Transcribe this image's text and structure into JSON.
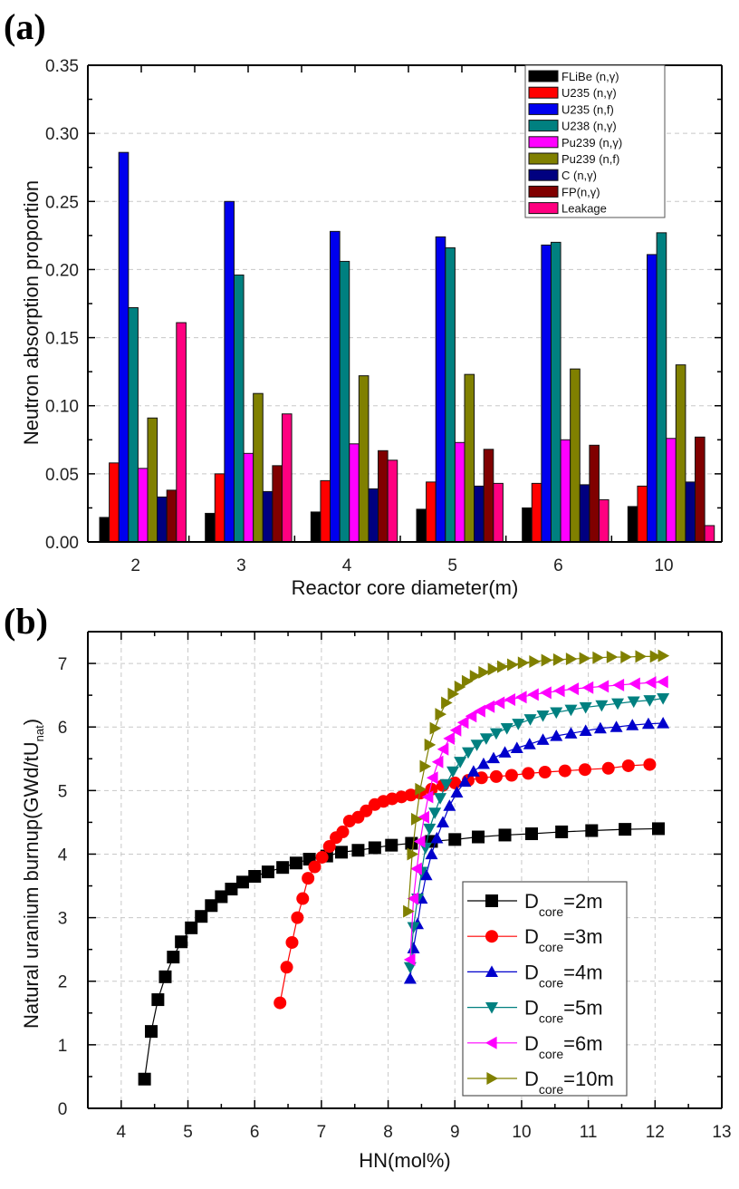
{
  "panels": {
    "a_label": "(a)",
    "b_label": "(b)"
  },
  "chart_data": [
    {
      "id": "a",
      "type": "bar",
      "title": "",
      "xlabel": "Reactor core diameter(m)",
      "ylabel": "Neutron absorption proportion",
      "ylim": [
        0,
        0.35
      ],
      "yticks": [
        "0.00",
        "0.05",
        "0.10",
        "0.15",
        "0.20",
        "0.25",
        "0.30",
        "0.35"
      ],
      "grid": "horizontal dashed",
      "legend_position": "top-right",
      "categories": [
        "2",
        "3",
        "4",
        "5",
        "6",
        "10"
      ],
      "series": [
        {
          "name": "FLiBe (n,γ)",
          "color": "#000000",
          "values": [
            0.018,
            0.021,
            0.022,
            0.024,
            0.025,
            0.026
          ]
        },
        {
          "name": "U235 (n,γ)",
          "color": "#ff0000",
          "values": [
            0.058,
            0.05,
            0.045,
            0.044,
            0.043,
            0.041
          ]
        },
        {
          "name": "U235 (n,f)",
          "color": "#0000ee",
          "values": [
            0.286,
            0.25,
            0.228,
            0.224,
            0.218,
            0.211
          ]
        },
        {
          "name": "U238 (n,γ)",
          "color": "#008080",
          "values": [
            0.172,
            0.196,
            0.206,
            0.216,
            0.22,
            0.227
          ]
        },
        {
          "name": "Pu239 (n,γ)",
          "color": "#ff00ff",
          "values": [
            0.054,
            0.065,
            0.072,
            0.073,
            0.075,
            0.076
          ]
        },
        {
          "name": "Pu239 (n,f)",
          "color": "#808000",
          "values": [
            0.091,
            0.109,
            0.122,
            0.123,
            0.127,
            0.13
          ]
        },
        {
          "name": "C (n,γ)",
          "color": "#000080",
          "values": [
            0.033,
            0.037,
            0.039,
            0.041,
            0.042,
            0.044
          ]
        },
        {
          "name": "FP(n,γ)",
          "color": "#800000",
          "values": [
            0.038,
            0.056,
            0.067,
            0.068,
            0.071,
            0.077
          ]
        },
        {
          "name": "Leakage",
          "color": "#ff0080",
          "values": [
            0.161,
            0.094,
            0.06,
            0.043,
            0.031,
            0.012
          ]
        }
      ]
    },
    {
      "id": "b",
      "type": "line",
      "title": "",
      "xlabel": "HN(mol%)",
      "ylabel": "Natural uranium burnup(GWd/tU",
      "ylabel_sub": "nat",
      "ylabel_end": ")",
      "xlim": [
        3.5,
        13
      ],
      "ylim": [
        0,
        7.5
      ],
      "xticks": [
        "4",
        "5",
        "6",
        "7",
        "8",
        "9",
        "10",
        "11",
        "12",
        "13"
      ],
      "yticks": [
        "0",
        "1",
        "2",
        "3",
        "4",
        "5",
        "6",
        "7"
      ],
      "grid": "dashed both",
      "legend_position": "bottom-right",
      "series": [
        {
          "name": "D",
          "sub": "core",
          "suffix": "=2m",
          "color": "#000000",
          "marker": "square",
          "x": [
            4.35,
            4.45,
            4.55,
            4.66,
            4.78,
            4.9,
            5.05,
            5.2,
            5.35,
            5.5,
            5.65,
            5.82,
            6.0,
            6.2,
            6.42,
            6.62,
            6.82,
            7.08,
            7.3,
            7.55,
            7.8,
            8.05,
            8.35,
            8.65,
            9.0,
            9.35,
            9.75,
            10.15,
            10.6,
            11.05,
            11.55,
            12.05
          ],
          "y": [
            0.46,
            1.21,
            1.71,
            2.07,
            2.38,
            2.62,
            2.84,
            3.02,
            3.19,
            3.33,
            3.45,
            3.56,
            3.65,
            3.72,
            3.79,
            3.86,
            3.92,
            3.97,
            4.03,
            4.06,
            4.1,
            4.14,
            4.17,
            4.2,
            4.23,
            4.27,
            4.3,
            4.32,
            4.35,
            4.37,
            4.39,
            4.4
          ]
        },
        {
          "name": "D",
          "sub": "core",
          "suffix": "=3m",
          "color": "#ff0000",
          "marker": "circle",
          "x": [
            6.38,
            6.48,
            6.56,
            6.64,
            6.72,
            6.8,
            6.9,
            7.01,
            7.12,
            7.22,
            7.32,
            7.42,
            7.55,
            7.67,
            7.8,
            7.93,
            8.06,
            8.2,
            8.34,
            8.48,
            8.65,
            8.82,
            9.0,
            9.2,
            9.4,
            9.62,
            9.85,
            10.1,
            10.35,
            10.65,
            10.95,
            11.3,
            11.6,
            11.92
          ],
          "y": [
            1.66,
            2.22,
            2.61,
            3.0,
            3.3,
            3.62,
            3.8,
            3.95,
            4.12,
            4.26,
            4.35,
            4.52,
            4.58,
            4.68,
            4.78,
            4.83,
            4.87,
            4.9,
            4.93,
            4.96,
            5.02,
            5.08,
            5.12,
            5.16,
            5.2,
            5.22,
            5.24,
            5.27,
            5.29,
            5.31,
            5.33,
            5.35,
            5.39,
            5.41
          ]
        },
        {
          "name": "D",
          "sub": "core",
          "suffix": "=4m",
          "color": "#0000cc",
          "marker": "triangle-up",
          "x": [
            8.33,
            8.38,
            8.44,
            8.5,
            8.57,
            8.65,
            8.73,
            8.82,
            8.92,
            9.03,
            9.15,
            9.28,
            9.43,
            9.58,
            9.75,
            9.93,
            10.12,
            10.32,
            10.52,
            10.74,
            10.96,
            11.18,
            11.42,
            11.66,
            11.9,
            12.12
          ],
          "y": [
            2.04,
            2.52,
            2.9,
            3.3,
            3.67,
            4.0,
            4.25,
            4.5,
            4.76,
            4.97,
            5.14,
            5.3,
            5.42,
            5.51,
            5.6,
            5.67,
            5.73,
            5.8,
            5.86,
            5.9,
            5.94,
            5.98,
            6.0,
            6.03,
            6.05,
            6.06
          ]
        },
        {
          "name": "D",
          "sub": "core",
          "suffix": "=5m",
          "color": "#008080",
          "marker": "triangle-down",
          "x": [
            8.33,
            8.38,
            8.44,
            8.5,
            8.56,
            8.62,
            8.7,
            8.78,
            8.87,
            8.97,
            9.08,
            9.2,
            9.33,
            9.47,
            9.62,
            9.78,
            9.95,
            10.13,
            10.32,
            10.52,
            10.74,
            10.96,
            11.2,
            11.44,
            11.68,
            11.92,
            12.12
          ],
          "y": [
            2.22,
            2.85,
            3.3,
            3.72,
            4.1,
            4.4,
            4.65,
            4.88,
            5.1,
            5.3,
            5.45,
            5.6,
            5.72,
            5.82,
            5.9,
            5.98,
            6.05,
            6.12,
            6.18,
            6.23,
            6.27,
            6.31,
            6.34,
            6.37,
            6.4,
            6.42,
            6.45
          ]
        },
        {
          "name": "D",
          "sub": "core",
          "suffix": "=6m",
          "color": "#ff00ff",
          "marker": "triangle-left",
          "x": [
            8.33,
            8.38,
            8.43,
            8.48,
            8.54,
            8.6,
            8.67,
            8.75,
            8.83,
            8.92,
            9.02,
            9.13,
            9.25,
            9.38,
            9.52,
            9.67,
            9.83,
            10.0,
            10.18,
            10.37,
            10.57,
            10.78,
            11.0,
            11.23,
            11.46,
            11.7,
            11.94,
            12.12
          ],
          "y": [
            2.34,
            3.3,
            3.77,
            4.2,
            4.58,
            4.9,
            5.2,
            5.45,
            5.65,
            5.82,
            5.95,
            6.07,
            6.17,
            6.25,
            6.32,
            6.38,
            6.43,
            6.47,
            6.51,
            6.54,
            6.57,
            6.6,
            6.62,
            6.64,
            6.66,
            6.68,
            6.7,
            6.71
          ]
        },
        {
          "name": "D",
          "sub": "core",
          "suffix": "=10m",
          "color": "#808000",
          "marker": "triangle-right",
          "x": [
            8.3,
            8.36,
            8.42,
            8.48,
            8.55,
            8.62,
            8.7,
            8.78,
            8.87,
            8.97,
            9.07,
            9.18,
            9.3,
            9.43,
            9.57,
            9.71,
            9.86,
            10.02,
            10.19,
            10.37,
            10.55,
            10.74,
            10.94,
            11.14,
            11.35,
            11.56,
            11.78,
            12.0,
            12.12
          ],
          "y": [
            3.1,
            4.0,
            4.55,
            5.02,
            5.38,
            5.72,
            5.98,
            6.2,
            6.38,
            6.52,
            6.63,
            6.72,
            6.8,
            6.86,
            6.91,
            6.95,
            6.98,
            7.01,
            7.03,
            7.05,
            7.06,
            7.07,
            7.08,
            7.09,
            7.1,
            7.1,
            7.11,
            7.11,
            7.12
          ]
        }
      ]
    }
  ]
}
